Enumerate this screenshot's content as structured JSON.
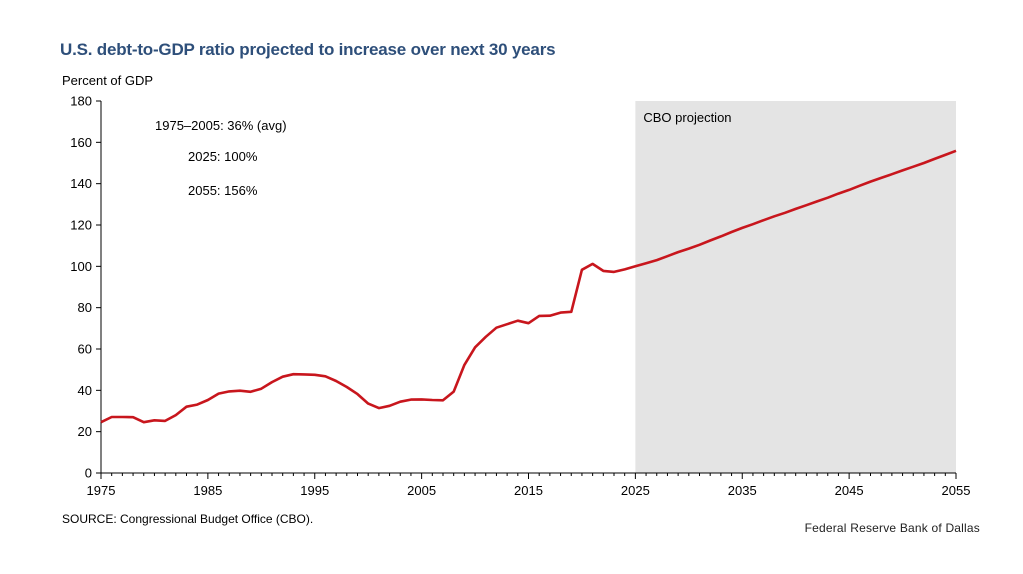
{
  "title": "U.S. debt-to-GDP ratio projected to increase over next 30 years",
  "source": "SOURCE: Congressional Budget Office (CBO).",
  "brand": "Federal Reserve Bank of Dallas",
  "colors": {
    "line": "#c8161d",
    "shade": "#e4e4e4",
    "title": "#2e4f7a"
  },
  "chart_data": {
    "type": "line",
    "title": "U.S. debt-to-GDP ratio projected to increase over next 30 years",
    "ylabel": "Percent of GDP",
    "xlabel": "",
    "xlim": [
      1975,
      2055
    ],
    "ylim": [
      0,
      180
    ],
    "xticks": [
      1975,
      1985,
      1995,
      2005,
      2015,
      2025,
      2035,
      2045,
      2055
    ],
    "yticks": [
      0,
      20,
      40,
      60,
      80,
      100,
      120,
      140,
      160,
      180
    ],
    "grid": false,
    "shaded_region": {
      "x_start": 2025,
      "x_end": 2055,
      "label": "CBO projection"
    },
    "annotations": [
      "1975–2005: 36% (avg)",
      "2025: 100%",
      "2055: 156%"
    ],
    "series": [
      {
        "x": [
          1975,
          1976,
          1977,
          1978,
          1979,
          1980,
          1981,
          1982,
          1983,
          1984,
          1985,
          1986,
          1987,
          1988,
          1989,
          1990,
          1991,
          1992,
          1993,
          1994,
          1995,
          1996,
          1997,
          1998,
          1999,
          2000,
          2001,
          2002,
          2003,
          2004,
          2005,
          2006,
          2007,
          2008,
          2009,
          2010,
          2011,
          2012,
          2013,
          2014,
          2015,
          2016,
          2017,
          2018,
          2019,
          2020,
          2021,
          2022,
          2023,
          2024,
          2025,
          2026,
          2027,
          2028,
          2029,
          2030,
          2031,
          2032,
          2033,
          2034,
          2035,
          2036,
          2037,
          2038,
          2039,
          2040,
          2041,
          2042,
          2043,
          2044,
          2045,
          2046,
          2047,
          2048,
          2049,
          2050,
          2051,
          2052,
          2053,
          2054,
          2055
        ],
        "values": [
          24.6,
          27.1,
          27.1,
          27.0,
          24.6,
          25.5,
          25.2,
          28.0,
          32.1,
          33.1,
          35.3,
          38.4,
          39.5,
          39.8,
          39.3,
          40.8,
          44.0,
          46.6,
          47.8,
          47.7,
          47.5,
          46.8,
          44.5,
          41.6,
          38.2,
          33.6,
          31.4,
          32.5,
          34.5,
          35.5,
          35.6,
          35.3,
          35.2,
          39.4,
          52.3,
          60.8,
          65.9,
          70.3,
          72.0,
          73.7,
          72.5,
          76.0,
          76.1,
          77.6,
          78.0,
          98.3,
          101.2,
          97.8,
          97.3,
          98.5,
          100.0,
          101.5,
          103.0,
          104.9,
          106.9,
          108.6,
          110.4,
          112.5,
          114.5,
          116.6,
          118.6,
          120.4,
          122.3,
          124.2,
          125.9,
          127.8,
          129.6,
          131.4,
          133.2,
          135.2,
          137.0,
          139.0,
          141.0,
          142.8,
          144.6,
          146.4,
          148.2,
          150.0,
          152.0,
          153.9,
          155.9
        ]
      }
    ]
  }
}
